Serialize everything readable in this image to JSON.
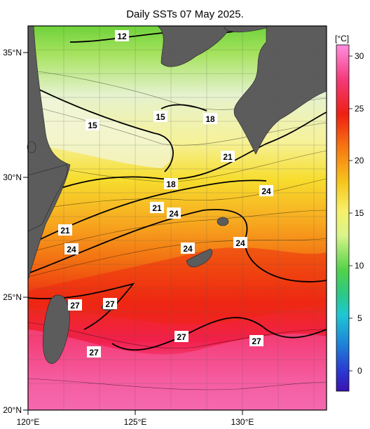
{
  "title": "Daily SSTs 07 May 2025.",
  "units": "[°C]",
  "x_ticks": [
    "120°E",
    "125°E",
    "130°E"
  ],
  "y_ticks": [
    "35°N",
    "30°N",
    "25°N",
    "20°N"
  ],
  "colorbar_ticks": [
    "30",
    "25",
    "20",
    "15",
    "10",
    "5",
    "0"
  ],
  "contour_labels": [
    "12",
    "15",
    "15",
    "18",
    "21",
    "24",
    "18",
    "21",
    "24",
    "21",
    "24",
    "24",
    "24",
    "27",
    "27",
    "27",
    "27",
    "27"
  ]
}
